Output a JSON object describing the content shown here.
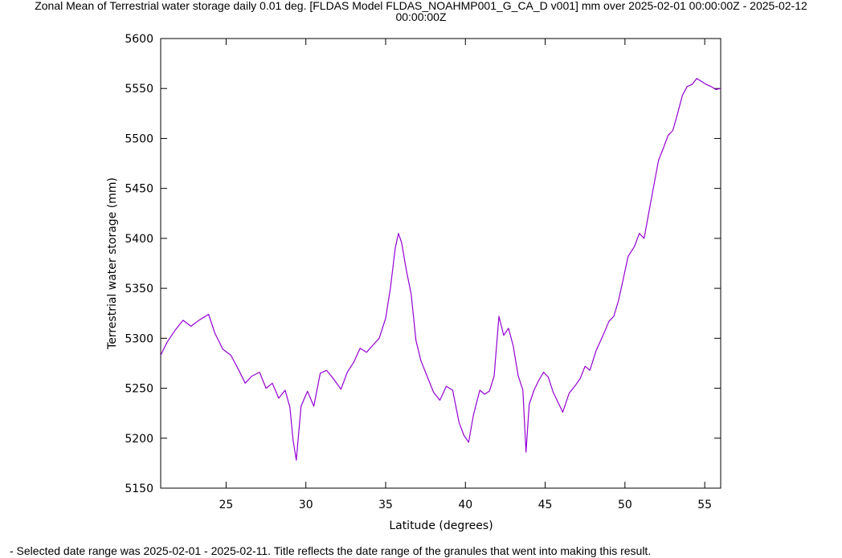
{
  "caption": "- Selected date range was 2025-02-01 - 2025-02-11. Title reflects the date range of the granules that went into making this result.",
  "chart_data": {
    "type": "line",
    "title_line1": "Zonal Mean of Terrestrial water storage daily 0.01 deg. [FLDAS Model FLDAS_NOAHMP001_G_CA_D v001] mm over 2025-02-01 00:00:00Z - 2025-02-12",
    "title_line2": "00:00:00Z",
    "xlabel": "Latitude (degrees)",
    "ylabel": "Terrestrial water storage (mm)",
    "xlim": [
      20.9,
      56.0
    ],
    "ylim": [
      5150,
      5600
    ],
    "xticks": [
      25,
      30,
      35,
      40,
      45,
      50,
      55
    ],
    "yticks": [
      5150,
      5200,
      5250,
      5300,
      5350,
      5400,
      5450,
      5500,
      5550,
      5600
    ],
    "grid": false,
    "legend": "none",
    "line_color": "#9400d3",
    "series": [
      {
        "x": [
          20.9,
          21.3,
          21.8,
          22.3,
          22.8,
          23.3,
          23.9,
          24.3,
          24.8,
          25.3,
          25.8,
          26.2,
          26.6,
          27.1,
          27.5,
          27.9,
          28.3,
          28.7,
          29.0,
          29.2,
          29.4,
          29.7,
          30.1,
          30.5,
          30.9,
          31.3,
          31.7,
          32.2,
          32.6,
          33.0,
          33.4,
          33.8,
          34.2,
          34.6,
          35.0,
          35.3,
          35.6,
          35.8,
          36.0,
          36.3,
          36.6,
          36.9,
          37.2,
          37.6,
          38.0,
          38.4,
          38.8,
          39.2,
          39.6,
          39.9,
          40.2,
          40.5,
          40.9,
          41.2,
          41.5,
          41.8,
          42.1,
          42.4,
          42.7,
          43.0,
          43.3,
          43.6,
          43.8,
          44.0,
          44.3,
          44.6,
          44.9,
          45.2,
          45.5,
          45.8,
          46.1,
          46.5,
          46.9,
          47.2,
          47.5,
          47.8,
          48.2,
          48.6,
          49.0,
          49.3,
          49.6,
          49.9,
          50.2,
          50.6,
          50.9,
          51.2,
          51.5,
          51.8,
          52.1,
          52.4,
          52.7,
          53.0,
          53.3,
          53.6,
          53.9,
          54.2,
          54.5,
          54.8,
          55.1,
          55.4,
          55.7,
          56.0
        ],
        "y": [
          5283,
          5296,
          5308,
          5318,
          5312,
          5318,
          5324,
          5305,
          5289,
          5283,
          5268,
          5255,
          5262,
          5266,
          5250,
          5255,
          5240,
          5248,
          5231,
          5198,
          5178,
          5232,
          5247,
          5232,
          5265,
          5268,
          5260,
          5249,
          5266,
          5276,
          5290,
          5286,
          5293,
          5300,
          5320,
          5350,
          5390,
          5405,
          5396,
          5368,
          5344,
          5298,
          5278,
          5262,
          5246,
          5238,
          5252,
          5248,
          5216,
          5203,
          5196,
          5223,
          5248,
          5244,
          5247,
          5262,
          5322,
          5303,
          5310,
          5292,
          5263,
          5248,
          5186,
          5234,
          5248,
          5258,
          5266,
          5261,
          5246,
          5236,
          5226,
          5245,
          5253,
          5260,
          5272,
          5268,
          5288,
          5302,
          5317,
          5322,
          5338,
          5360,
          5382,
          5392,
          5405,
          5400,
          5426,
          5452,
          5478,
          5490,
          5503,
          5508,
          5525,
          5543,
          5552,
          5554,
          5560,
          5557,
          5554,
          5552,
          5549,
          5550
        ]
      }
    ]
  }
}
